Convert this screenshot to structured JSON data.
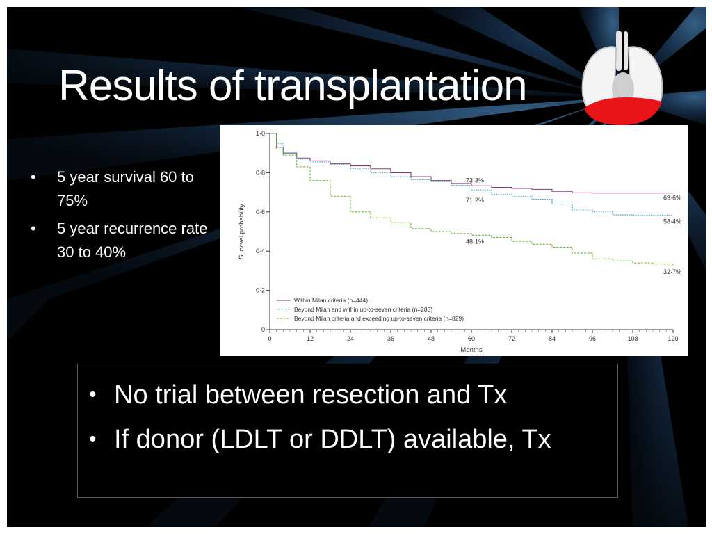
{
  "slide": {
    "title": "Results of transplantation",
    "left_bullets": [
      "5 year survival 60 to 75%",
      "5 year recurrence rate 30 to 40%"
    ],
    "main_bullets": [
      "No trial between resection and Tx",
      "If donor (LDLT or DDLT) available, Tx"
    ]
  },
  "colors": {
    "background": "#000000",
    "text": "#ffffff",
    "ray": "#1c3a5c",
    "organ_red": "#e8141a"
  },
  "icons": {
    "organ": "liver-lungs-icon"
  },
  "chart_data": {
    "type": "line",
    "title": "",
    "xlabel": "Months",
    "ylabel": "Survival probability",
    "xlim": [
      0,
      120
    ],
    "ylim": [
      0,
      1
    ],
    "xticks": [
      0,
      12,
      24,
      36,
      48,
      60,
      72,
      84,
      96,
      108,
      120
    ],
    "yticks": [
      {
        "value": 0,
        "label": "0"
      },
      {
        "value": 0.2,
        "label": "0·2"
      },
      {
        "value": 0.4,
        "label": "0·4"
      },
      {
        "value": 0.6,
        "label": "0·6"
      },
      {
        "value": 0.8,
        "label": "0·8"
      },
      {
        "value": 1.0,
        "label": "1·0"
      }
    ],
    "legend_position": "bottom-left",
    "series": [
      {
        "name": "Within Milan criteria (n=444)",
        "color": "#8a3a7a",
        "style": "solid",
        "points": [
          [
            0,
            1
          ],
          [
            2,
            0.93
          ],
          [
            4,
            0.9
          ],
          [
            8,
            0.875
          ],
          [
            12,
            0.86
          ],
          [
            18,
            0.845
          ],
          [
            24,
            0.835
          ],
          [
            30,
            0.82
          ],
          [
            36,
            0.8
          ],
          [
            42,
            0.78
          ],
          [
            48,
            0.76
          ],
          [
            54,
            0.745
          ],
          [
            60,
            0.733
          ],
          [
            66,
            0.725
          ],
          [
            72,
            0.72
          ],
          [
            78,
            0.715
          ],
          [
            84,
            0.705
          ],
          [
            90,
            0.697
          ],
          [
            96,
            0.696
          ],
          [
            108,
            0.696
          ],
          [
            120,
            0.696
          ]
        ]
      },
      {
        "name": "Beyond Milan and within up-to-seven criteria (n=283)",
        "color": "#2e9fd0",
        "style": "dotted",
        "points": [
          [
            0,
            1
          ],
          [
            2,
            0.95
          ],
          [
            4,
            0.9
          ],
          [
            8,
            0.87
          ],
          [
            12,
            0.855
          ],
          [
            18,
            0.84
          ],
          [
            24,
            0.82
          ],
          [
            30,
            0.8
          ],
          [
            36,
            0.78
          ],
          [
            42,
            0.765
          ],
          [
            48,
            0.755
          ],
          [
            54,
            0.735
          ],
          [
            60,
            0.712
          ],
          [
            66,
            0.69
          ],
          [
            72,
            0.68
          ],
          [
            78,
            0.665
          ],
          [
            84,
            0.64
          ],
          [
            90,
            0.61
          ],
          [
            96,
            0.6
          ],
          [
            102,
            0.585
          ],
          [
            108,
            0.584
          ],
          [
            120,
            0.584
          ]
        ]
      },
      {
        "name": "Beyond Milan criteria and exceeding up-to-seven criteria (n=829)",
        "color": "#6ab42a",
        "style": "dashed",
        "points": [
          [
            0,
            1
          ],
          [
            2,
            0.92
          ],
          [
            4,
            0.89
          ],
          [
            8,
            0.83
          ],
          [
            12,
            0.76
          ],
          [
            18,
            0.68
          ],
          [
            24,
            0.6
          ],
          [
            30,
            0.57
          ],
          [
            36,
            0.545
          ],
          [
            42,
            0.515
          ],
          [
            48,
            0.5
          ],
          [
            54,
            0.49
          ],
          [
            60,
            0.481
          ],
          [
            66,
            0.47
          ],
          [
            72,
            0.45
          ],
          [
            78,
            0.435
          ],
          [
            84,
            0.42
          ],
          [
            90,
            0.39
          ],
          [
            96,
            0.36
          ],
          [
            102,
            0.35
          ],
          [
            108,
            0.34
          ],
          [
            114,
            0.335
          ],
          [
            120,
            0.327
          ]
        ]
      }
    ],
    "annotations": [
      {
        "text": "73·3%",
        "series": 0,
        "x": 60,
        "y": 0.733
      },
      {
        "text": "71·2%",
        "series": 1,
        "x": 60,
        "y": 0.712
      },
      {
        "text": "48·1%",
        "series": 2,
        "x": 60,
        "y": 0.481
      },
      {
        "text": "69·6%",
        "series": 0,
        "x": 120,
        "y": 0.696
      },
      {
        "text": "58·4%",
        "series": 1,
        "x": 120,
        "y": 0.584
      },
      {
        "text": "32·7%",
        "series": 2,
        "x": 120,
        "y": 0.327
      }
    ]
  }
}
